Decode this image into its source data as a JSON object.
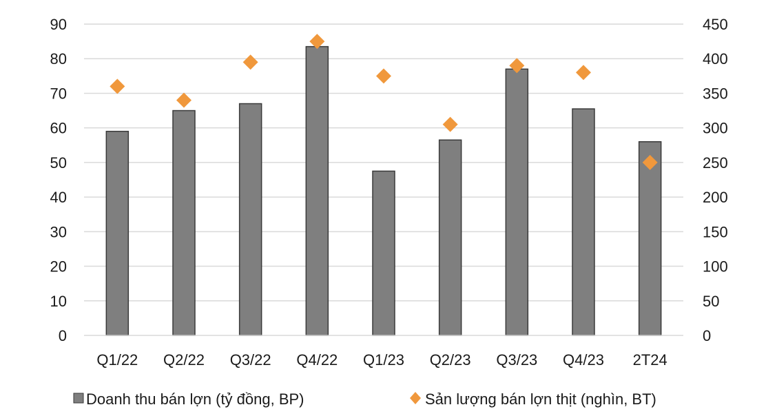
{
  "chart_data": {
    "type": "bar",
    "categories": [
      "Q1/22",
      "Q2/22",
      "Q3/22",
      "Q4/22",
      "Q1/23",
      "Q2/23",
      "Q3/23",
      "Q4/23",
      "2T24"
    ],
    "series": [
      {
        "name": "Doanh thu bán lợn (tỷ đồng, BP)",
        "type": "bar",
        "axis": "left",
        "color": "#7f7f7f",
        "values": [
          59,
          65,
          67,
          83.5,
          47.5,
          56.5,
          77,
          65.5,
          56
        ]
      },
      {
        "name": "Sản lượng bán lợn thịt (nghìn, BT)",
        "type": "scatter",
        "marker": "diamond",
        "axis": "right",
        "color": "#f0983c",
        "values": [
          360,
          340,
          395,
          425,
          375,
          305,
          390,
          380,
          250
        ]
      }
    ],
    "y_left": {
      "ylim": [
        0,
        90
      ],
      "ticks": [
        "0",
        "10",
        "20",
        "30",
        "40",
        "50",
        "60",
        "70",
        "80",
        "90"
      ]
    },
    "y_right": {
      "ylim": [
        0,
        450
      ],
      "ticks": [
        "0",
        "50",
        "100",
        "150",
        "200",
        "250",
        "300",
        "350",
        "400",
        "450"
      ]
    },
    "grid": true,
    "legend_position": "bottom"
  }
}
